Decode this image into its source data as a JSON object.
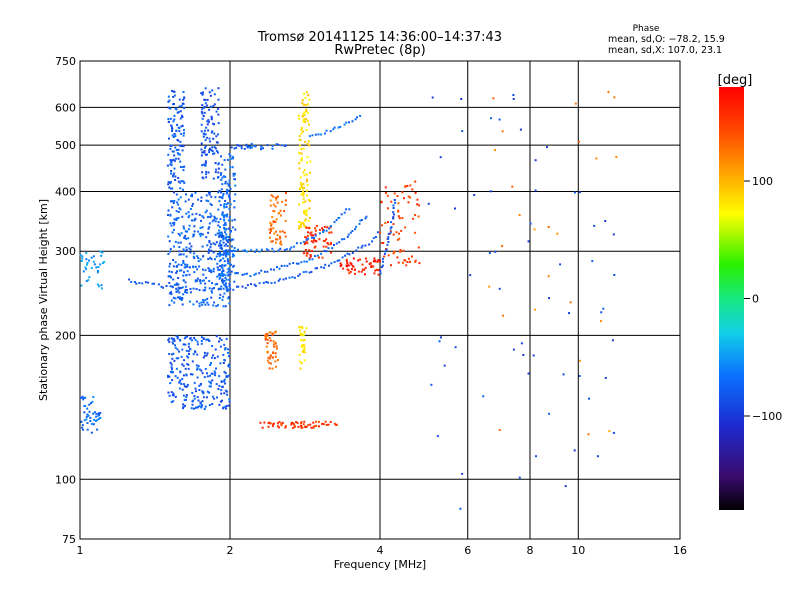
{
  "chart_data": {
    "type": "scatter",
    "title": "Tromsø 20141125 14:36:00–14:37:43",
    "subtitle": "RwPretec (8p)",
    "phase_stats": {
      "heading": "Phase",
      "line_o": "mean, sd,O: −78.2, 15.9",
      "line_x": "mean, sd,X: 107.0, 23.1"
    },
    "xlabel": "Frequency [MHz]",
    "ylabel": "Stationary phase Virtual Height [km]",
    "x_scale": "log",
    "y_scale": "log",
    "xlim": [
      1,
      16
    ],
    "ylim": [
      75,
      750
    ],
    "x_ticks": [
      1,
      2,
      4,
      6,
      8,
      10,
      16
    ],
    "x_tick_labels": [
      "1",
      "2",
      "4",
      "6",
      "8",
      "10",
      "16"
    ],
    "y_ticks": [
      75,
      100,
      200,
      300,
      400,
      500,
      600,
      750
    ],
    "y_tick_labels": [
      "75",
      "100",
      "200",
      "300",
      "400",
      "500",
      "600",
      "750"
    ],
    "x_gridlines": [
      2,
      4,
      6,
      8,
      10
    ],
    "y_gridlines": [
      100,
      200,
      300,
      400,
      500,
      600
    ],
    "grid": true,
    "colorbar": {
      "label": "[deg]",
      "ticks": [
        100,
        0,
        -100
      ],
      "tick_labels": [
        "100",
        "0",
        "−100"
      ],
      "range": [
        -180,
        180
      ]
    },
    "series": [
      {
        "phase": -80,
        "x_range": [
          1.5,
          1.62
        ],
        "y_range": [
          400,
          650
        ],
        "count": 120
      },
      {
        "phase": -85,
        "x_range": [
          1.75,
          1.9
        ],
        "y_range": [
          420,
          660
        ],
        "count": 110
      },
      {
        "phase": -75,
        "x_range": [
          1.5,
          2.0
        ],
        "y_range": [
          230,
          400
        ],
        "count": 380
      },
      {
        "phase": -70,
        "x_range": [
          1.9,
          2.05
        ],
        "y_range": [
          250,
          480
        ],
        "count": 150
      },
      {
        "phase": -80,
        "x_range": [
          1.5,
          2.0
        ],
        "y_range": [
          140,
          200
        ],
        "count": 260
      },
      {
        "phase": -70,
        "x_range": [
          1.0,
          1.1
        ],
        "y_range": [
          125,
          150
        ],
        "count": 45
      },
      {
        "phase": -50,
        "x_range": [
          1.0,
          1.12
        ],
        "y_range": [
          250,
          300
        ],
        "count": 35
      },
      {
        "phase": -78,
        "x_range": [
          2.0,
          2.6
        ],
        "y_range": [
          490,
          505
        ],
        "count": 30
      },
      {
        "phase": 130,
        "x_range": [
          2.4,
          2.6
        ],
        "y_range": [
          310,
          400
        ],
        "count": 55
      },
      {
        "phase": 85,
        "x_range": [
          2.75,
          2.9
        ],
        "y_range": [
          330,
          650
        ],
        "count": 110
      },
      {
        "phase": 160,
        "x_range": [
          2.8,
          3.2
        ],
        "y_range": [
          290,
          340
        ],
        "count": 60
      },
      {
        "phase": 130,
        "x_range": [
          2.35,
          2.5
        ],
        "y_range": [
          170,
          205
        ],
        "count": 45
      },
      {
        "phase": 80,
        "x_range": [
          2.75,
          2.85
        ],
        "y_range": [
          170,
          210
        ],
        "count": 30
      },
      {
        "phase": 150,
        "x_range": [
          2.3,
          3.3
        ],
        "y_range": [
          128,
          132
        ],
        "count": 60
      },
      {
        "phase": 165,
        "x_range": [
          3.3,
          4.0
        ],
        "y_range": [
          268,
          290
        ],
        "count": 55
      },
      {
        "phase": 150,
        "x_range": [
          4.0,
          4.8
        ],
        "y_range": [
          280,
          420
        ],
        "count": 75
      },
      {
        "phase": -90,
        "x_range": [
          5.0,
          12.0
        ],
        "y_range": [
          85,
          650
        ],
        "count": 60
      },
      {
        "phase": 120,
        "x_range": [
          6.5,
          12.0
        ],
        "y_range": [
          120,
          650
        ],
        "count": 25
      }
    ],
    "traces": [
      {
        "phase": -80,
        "curve": [
          [
            1.25,
            260
          ],
          [
            1.6,
            250
          ],
          [
            2.0,
            250
          ],
          [
            2.6,
            262
          ],
          [
            3.2,
            282
          ],
          [
            3.8,
            312
          ],
          [
            4.0,
            330
          ]
        ]
      },
      {
        "phase": -75,
        "curve": [
          [
            1.6,
            280
          ],
          [
            2.2,
            268
          ],
          [
            2.9,
            288
          ],
          [
            3.4,
            318
          ],
          [
            3.8,
            360
          ]
        ]
      },
      {
        "phase": -70,
        "curve": [
          [
            2.0,
            300
          ],
          [
            2.6,
            302
          ],
          [
            3.1,
            330
          ],
          [
            3.5,
            372
          ]
        ]
      },
      {
        "phase": -70,
        "curve": [
          [
            2.9,
            520
          ],
          [
            3.3,
            545
          ],
          [
            3.7,
            580
          ]
        ]
      },
      {
        "phase": -85,
        "curve": [
          [
            4.0,
            270
          ],
          [
            4.2,
            330
          ],
          [
            4.3,
            390
          ]
        ]
      }
    ]
  }
}
